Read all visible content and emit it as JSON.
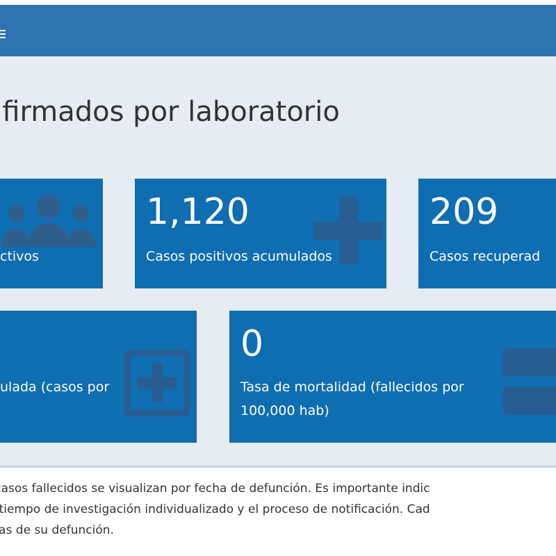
{
  "page": {
    "title": "nfirmados por laboratorio"
  },
  "cards": {
    "active": {
      "label": "ctivos",
      "icon": "people-icon"
    },
    "positive": {
      "value": "1,120",
      "label": "Casos positivos acumulados",
      "icon": "plus-icon"
    },
    "recovered": {
      "value": "209",
      "label": "Casos recuperad",
      "icon": "check-icon"
    },
    "cumulative_rate": {
      "label": "ulada (casos por",
      "icon": "plus-square-icon"
    },
    "mortality": {
      "value": "0",
      "label_line1": "Tasa de mortalidad (fallecidos por",
      "label_line2": "100,000 hab)",
      "icon": "minus-square-icon"
    }
  },
  "footer": {
    "line1": "s casos fallecidos se visualizan por fecha de defunción. Es importante indic",
    "line2": "el tiempo de investigación individualizado y el proceso de notificación. Cad",
    "line3": "chas de su defunción."
  },
  "colors": {
    "header": "#2e72b0",
    "card": "#0f6db2",
    "panel": "#e6ecf2"
  }
}
